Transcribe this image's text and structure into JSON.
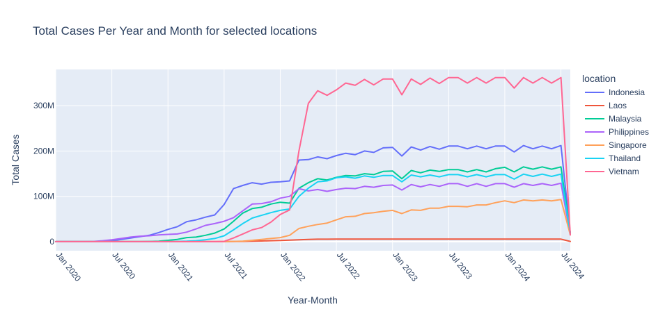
{
  "chart_data": {
    "type": "line",
    "title": "Total Cases Per Year and Month for selected locations",
    "xlabel": "Year-Month",
    "ylabel": "Total Cases",
    "legend_title": "location",
    "legend_position": "right",
    "grid": true,
    "background": "#E5ECF6",
    "x_range": [
      "2020-01",
      "2024-08"
    ],
    "x_ticks": [
      {
        "date": "2020-01",
        "label": "Jan 2020"
      },
      {
        "date": "2020-07",
        "label": "Jul 2020"
      },
      {
        "date": "2021-01",
        "label": "Jan 2021"
      },
      {
        "date": "2021-07",
        "label": "Jul 2021"
      },
      {
        "date": "2022-01",
        "label": "Jan 2022"
      },
      {
        "date": "2022-07",
        "label": "Jul 2022"
      },
      {
        "date": "2023-01",
        "label": "Jan 2023"
      },
      {
        "date": "2023-07",
        "label": "Jul 2023"
      },
      {
        "date": "2024-01",
        "label": "Jan 2024"
      },
      {
        "date": "2024-07",
        "label": "Jul 2024"
      }
    ],
    "ylim": [
      -20000000,
      380000000
    ],
    "y_ticks": [
      {
        "value": 0,
        "label": "0"
      },
      {
        "value": 100000000,
        "label": "100M"
      },
      {
        "value": 200000000,
        "label": "200M"
      },
      {
        "value": 300000000,
        "label": "300M"
      }
    ],
    "x": [
      "2020-01",
      "2020-02",
      "2020-03",
      "2020-04",
      "2020-05",
      "2020-06",
      "2020-07",
      "2020-08",
      "2020-09",
      "2020-10",
      "2020-11",
      "2020-12",
      "2021-01",
      "2021-02",
      "2021-03",
      "2021-04",
      "2021-05",
      "2021-06",
      "2021-07",
      "2021-08",
      "2021-09",
      "2021-10",
      "2021-11",
      "2021-12",
      "2022-01",
      "2022-02",
      "2022-03",
      "2022-04",
      "2022-05",
      "2022-06",
      "2022-07",
      "2022-08",
      "2022-09",
      "2022-10",
      "2022-11",
      "2022-12",
      "2023-01",
      "2023-02",
      "2023-03",
      "2023-04",
      "2023-05",
      "2023-06",
      "2023-07",
      "2023-08",
      "2023-09",
      "2023-10",
      "2023-11",
      "2023-12",
      "2024-01",
      "2024-02",
      "2024-03",
      "2024-04",
      "2024-05",
      "2024-06",
      "2024-07",
      "2024-08"
    ],
    "series": [
      {
        "name": "Indonesia",
        "color": "#636EFA",
        "values": [
          0,
          0,
          0,
          0,
          0.1,
          0.5,
          2,
          5,
          8,
          11,
          14,
          20,
          27,
          33,
          44,
          48,
          54,
          59,
          82,
          117,
          124,
          130,
          127,
          131,
          132,
          134,
          180,
          181,
          187,
          183,
          190,
          195,
          192,
          200,
          197,
          207,
          208,
          189,
          209,
          202,
          210,
          204,
          211,
          211,
          205,
          211,
          205,
          211,
          211,
          198,
          212,
          205,
          211,
          205,
          212,
          18
        ]
      },
      {
        "name": "Laos",
        "color": "#EF553B",
        "values": [
          0,
          0,
          0,
          0,
          0,
          0,
          0,
          0,
          0,
          0,
          0,
          0,
          0,
          0,
          0,
          0,
          0,
          0,
          0,
          0.2,
          0.5,
          1,
          1.5,
          2,
          2.5,
          3.5,
          4,
          5,
          5.5,
          5.5,
          5.6,
          5.6,
          5.6,
          5.6,
          5.6,
          5.6,
          5.6,
          5.6,
          5.6,
          5.6,
          5.6,
          5.6,
          5.6,
          5.6,
          5.6,
          5.6,
          5.6,
          5.6,
          5.6,
          5.6,
          5.6,
          5.6,
          5.6,
          5.6,
          5.6,
          0.5
        ]
      },
      {
        "name": "Malaysia",
        "color": "#00CC96",
        "values": [
          0,
          0,
          0,
          0,
          0,
          0,
          0,
          0,
          0,
          0,
          0.5,
          1,
          3,
          5,
          9,
          10,
          14,
          19,
          28,
          45,
          63,
          73,
          76,
          83,
          87,
          85,
          118,
          130,
          139,
          136,
          142,
          146,
          145,
          150,
          148,
          155,
          156,
          139,
          157,
          152,
          158,
          155,
          159,
          159,
          154,
          159,
          154,
          161,
          164,
          154,
          165,
          160,
          165,
          160,
          165,
          20
        ]
      },
      {
        "name": "Philippines",
        "color": "#AB63FA",
        "values": [
          0,
          0,
          0,
          0,
          0.5,
          2,
          4,
          7,
          10,
          12,
          13,
          15,
          16,
          17,
          21,
          28,
          36,
          40,
          45,
          53,
          68,
          83,
          84,
          88,
          96,
          100,
          117,
          112,
          115,
          111,
          115,
          118,
          117,
          122,
          120,
          124,
          125,
          114,
          126,
          121,
          126,
          122,
          128,
          128,
          122,
          128,
          122,
          128,
          128,
          120,
          128,
          124,
          128,
          124,
          129,
          15
        ]
      },
      {
        "name": "Singapore",
        "color": "#FFA15A",
        "values": [
          0,
          0,
          0,
          0,
          0,
          0,
          0,
          0,
          0,
          0,
          0,
          0,
          0,
          0,
          0,
          0,
          0,
          0,
          0.2,
          0.5,
          1,
          3,
          5,
          7,
          9,
          14,
          29,
          34,
          38,
          41,
          48,
          55,
          56,
          62,
          64,
          67,
          69,
          62,
          70,
          69,
          74,
          74,
          78,
          78,
          77,
          81,
          81,
          86,
          90,
          86,
          92,
          90,
          92,
          90,
          93,
          15
        ]
      },
      {
        "name": "Thailand",
        "color": "#19D3F3",
        "values": [
          0,
          0,
          0,
          0,
          0,
          0,
          0,
          0,
          0,
          0,
          0,
          0,
          0,
          0.5,
          1,
          2,
          4,
          7,
          13,
          26,
          40,
          52,
          58,
          64,
          69,
          72,
          100,
          118,
          132,
          134,
          141,
          143,
          140,
          145,
          142,
          146,
          146,
          132,
          147,
          143,
          147,
          143,
          148,
          148,
          143,
          148,
          143,
          148,
          148,
          138,
          149,
          144,
          149,
          144,
          149,
          18
        ]
      },
      {
        "name": "Vietnam",
        "color": "#FF6692",
        "values": [
          0,
          0,
          0,
          0,
          0,
          0,
          0,
          0,
          0,
          0,
          0,
          0,
          0,
          0,
          0,
          0,
          0,
          0,
          0.5,
          8,
          17,
          26,
          31,
          43,
          60,
          70,
          200,
          305,
          333,
          323,
          335,
          350,
          345,
          358,
          346,
          359,
          359,
          324,
          359,
          347,
          361,
          349,
          362,
          362,
          350,
          362,
          350,
          362,
          362,
          339,
          362,
          350,
          362,
          350,
          362,
          15
        ]
      }
    ],
    "value_unit_multiplier": 1000000
  }
}
